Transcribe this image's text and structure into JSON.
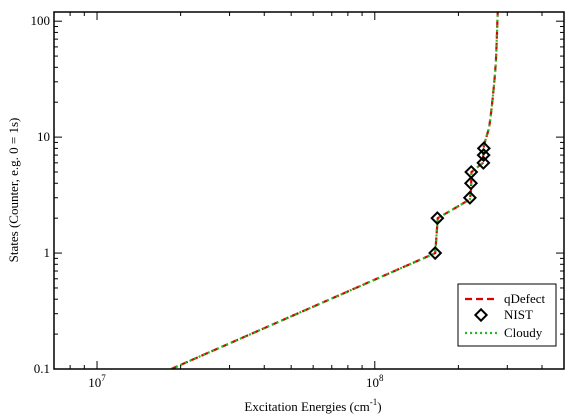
{
  "chart_data": {
    "type": "line",
    "xlabel": "Excitation Energies (cm",
    "xlabel_sup": "-1",
    "xlabel_end": ")",
    "ylabel": "States (Counter, e.g. 0 = 1s)",
    "x_scale": "log",
    "y_scale": "log",
    "xlim": [
      7000000,
      480000000
    ],
    "ylim": [
      0.1,
      120
    ],
    "x_ticks": [
      {
        "value": 10000000,
        "base": "10",
        "exp": "7"
      },
      {
        "value": 100000000,
        "base": "10",
        "exp": "8"
      }
    ],
    "y_ticks": [
      {
        "value": 0.1,
        "label": "0.1"
      },
      {
        "value": 1,
        "label": "1"
      },
      {
        "value": 10,
        "label": "10"
      },
      {
        "value": 100,
        "label": "100"
      }
    ],
    "legend_position": "bottom-right",
    "series": [
      {
        "name": "qDefect",
        "style": "dashed",
        "color": "#dd0000",
        "x": [
          18500000,
          165000000,
          168000000,
          168500000,
          220000000,
          222000000,
          223000000,
          245000000,
          246000000,
          247000000,
          258000000,
          262000000,
          266000000,
          270000000,
          273000000,
          275000000,
          277000000
        ],
        "y": [
          0.1,
          1,
          1.8,
          2,
          2.9,
          3.5,
          5,
          6,
          7.5,
          8.5,
          12,
          16,
          22,
          32,
          45,
          70,
          120
        ]
      },
      {
        "name": "NIST",
        "style": "markers",
        "color": "#000000",
        "x": [
          165000000,
          168000000,
          220000000,
          222000000,
          222500000,
          246000000,
          246500000,
          247000000
        ],
        "y": [
          1,
          2,
          3,
          4,
          5,
          6,
          7,
          8
        ]
      },
      {
        "name": "Cloudy",
        "style": "dotted",
        "color": "#22bb22",
        "x": [
          18500000,
          165000000,
          168000000,
          168500000,
          220000000,
          222000000,
          223000000,
          245000000,
          246000000,
          247000000,
          258000000,
          262000000,
          266000000,
          270000000,
          273000000,
          275000000,
          277000000
        ],
        "y": [
          0.1,
          1,
          1.8,
          2,
          2.9,
          3.5,
          5,
          6,
          7.5,
          8.5,
          12,
          16,
          22,
          32,
          45,
          70,
          120
        ]
      }
    ]
  }
}
